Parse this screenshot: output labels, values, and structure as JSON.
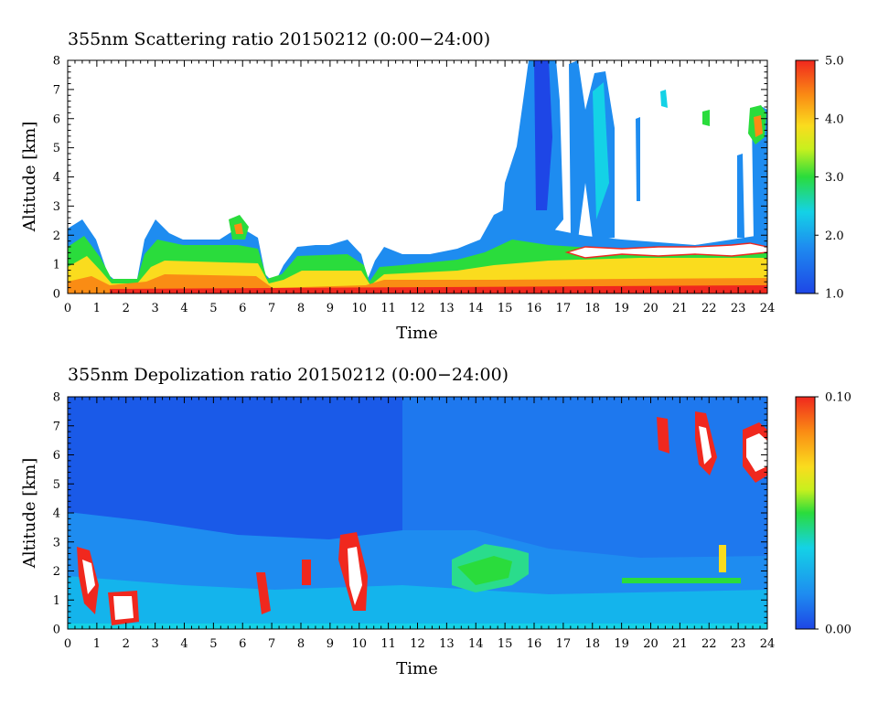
{
  "chart_data": [
    {
      "type": "heatmap",
      "title": "355nm Scattering ratio  20150212 (0:00−24:00)",
      "xlabel": "Time",
      "ylabel": "Altitude [km]",
      "xlim": [
        0,
        24
      ],
      "ylim": [
        0,
        8
      ],
      "x_ticks": [
        "0",
        "1",
        "2",
        "3",
        "4",
        "5",
        "6",
        "7",
        "8",
        "9",
        "10",
        "11",
        "12",
        "13",
        "14",
        "15",
        "16",
        "17",
        "18",
        "19",
        "20",
        "21",
        "22",
        "23",
        "24"
      ],
      "y_ticks": [
        "0",
        "1",
        "2",
        "3",
        "4",
        "5",
        "6",
        "7",
        "8"
      ],
      "colorbar": {
        "min": 1.0,
        "max": 5.0,
        "ticks": [
          "1.0",
          "2.0",
          "3.0",
          "4.0",
          "5.0"
        ]
      },
      "grid": false,
      "features": [
        {
          "time": [
            0,
            24
          ],
          "altitude": [
            0.3,
            0.6
          ],
          "value": 4.6
        },
        {
          "time": [
            14,
            24
          ],
          "altitude": [
            0.5,
            1.5
          ],
          "value": 3.9
        },
        {
          "time": [
            15.8,
            17.5
          ],
          "altitude": [
            1.5,
            8.0
          ],
          "value": 1.5
        },
        {
          "time": [
            18.0,
            18.7
          ],
          "altitude": [
            1.5,
            8.0
          ],
          "value": 1.6
        },
        {
          "time": [
            5.5,
            6.2
          ],
          "altitude": [
            2.0,
            2.6
          ],
          "value": 3.2
        },
        {
          "time": [
            23.4,
            24
          ],
          "altitude": [
            5.3,
            6.2
          ],
          "value": 4.0
        }
      ]
    },
    {
      "type": "heatmap",
      "title": "355nm Depolization ratio  20150212 (0:00−24:00)",
      "xlabel": "Time",
      "ylabel": "Altitude [km]",
      "xlim": [
        0,
        24
      ],
      "ylim": [
        0,
        8
      ],
      "x_ticks": [
        "0",
        "1",
        "2",
        "3",
        "4",
        "5",
        "6",
        "7",
        "8",
        "9",
        "10",
        "11",
        "12",
        "13",
        "14",
        "15",
        "16",
        "17",
        "18",
        "19",
        "20",
        "21",
        "22",
        "23",
        "24"
      ],
      "y_ticks": [
        "0",
        "1",
        "2",
        "3",
        "4",
        "5",
        "6",
        "7",
        "8"
      ],
      "colorbar": {
        "min": 0.0,
        "max": 0.1,
        "ticks": [
          "0.00",
          "0.10"
        ]
      },
      "grid": false,
      "features": [
        {
          "time": [
            0.5,
            1.2
          ],
          "altitude": [
            0.8,
            2.5
          ],
          "value": 0.09
        },
        {
          "time": [
            1.5,
            2.3
          ],
          "altitude": [
            0.2,
            1.2
          ],
          "value": 0.1
        },
        {
          "time": [
            9.4,
            10.2
          ],
          "altitude": [
            1.0,
            3.0
          ],
          "value": 0.1
        },
        {
          "time": [
            13.5,
            15.8
          ],
          "altitude": [
            1.2,
            2.8
          ],
          "value": 0.035
        },
        {
          "time": [
            21.4,
            22.1
          ],
          "altitude": [
            5.5,
            7.0
          ],
          "value": 0.1
        },
        {
          "time": [
            23.0,
            24
          ],
          "altitude": [
            5.3,
            6.9
          ],
          "value": 0.1
        }
      ]
    }
  ]
}
